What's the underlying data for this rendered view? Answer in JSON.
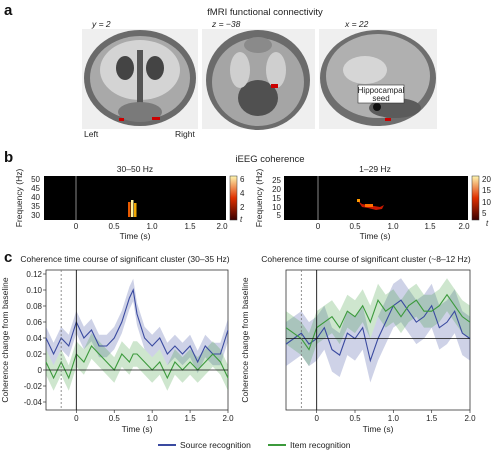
{
  "panels": {
    "a": {
      "label": "a",
      "title": "fMRI functional connectivity",
      "views": [
        {
          "coord": "y = 2",
          "orientation": "coronal"
        },
        {
          "coord": "z = −38",
          "orientation": "axial"
        },
        {
          "coord": "x = 22",
          "orientation": "sagittal"
        }
      ],
      "left_label": "Left",
      "right_label": "Right",
      "seed_label_line1": "Hippocampal",
      "seed_label_line2": "seed"
    },
    "b": {
      "label": "b",
      "title": "iEEG coherence",
      "colors": {
        "low": "#3a0000",
        "mid": "#e03000",
        "high": "#fff7b0"
      },
      "spectrograms": [
        {
          "title": "30–50 Hz",
          "ylabel": "Frequency (Hz)",
          "xlabel": "Time (s)",
          "yticks": [
            "50",
            "45",
            "40",
            "35",
            "30"
          ],
          "xticks": [
            "0",
            "0.5",
            "1.0",
            "1.5",
            "2.0"
          ],
          "cbar_ticks": [
            "6",
            "4",
            "2"
          ],
          "cbar_label": "t"
        },
        {
          "title": "1–29 Hz",
          "ylabel": "Frequency (Hz)",
          "xlabel": "Time (s)",
          "yticks": [
            "25",
            "20",
            "15",
            "10",
            "5"
          ],
          "xticks": [
            "0",
            "0.5",
            "1.0",
            "1.5",
            "2.0"
          ],
          "cbar_ticks": [
            "20",
            "15",
            "10",
            "5"
          ],
          "cbar_label": "t"
        }
      ]
    },
    "c": {
      "label": "c",
      "legend": [
        {
          "label": "Source recognition",
          "color": "#3a4aa0"
        },
        {
          "label": "Item recognition",
          "color": "#3c9a3c"
        }
      ]
    }
  },
  "chart_data": [
    {
      "type": "line",
      "title": "Coherence time course of significant cluster (30–35 Hz)",
      "xlabel": "Time (s)",
      "ylabel": "Coherence change from baseline",
      "xlim": [
        -0.4,
        2.0
      ],
      "ylim": [
        -0.05,
        0.125
      ],
      "xticks": [
        "0",
        "0.5",
        "1.0",
        "1.5",
        "2.0"
      ],
      "yticks": [
        "0.12",
        "0.10",
        "0.08",
        "0.06",
        "0.04",
        "0.02",
        "0",
        "-0.02",
        "-0.04"
      ],
      "ytick_values": [
        0.12,
        0.1,
        0.08,
        0.06,
        0.04,
        0.02,
        0,
        -0.02,
        -0.04
      ],
      "xtick_values": [
        0,
        0.5,
        1.0,
        1.5,
        2.0
      ],
      "vline_dashed": -0.2,
      "vline_solid": 0,
      "x": [
        -0.4,
        -0.3,
        -0.2,
        -0.1,
        0.0,
        0.1,
        0.2,
        0.3,
        0.4,
        0.5,
        0.6,
        0.7,
        0.75,
        0.8,
        0.9,
        1.0,
        1.1,
        1.2,
        1.3,
        1.4,
        1.5,
        1.6,
        1.7,
        1.8,
        1.9,
        2.0
      ],
      "series": [
        {
          "name": "Source recognition",
          "color": "#3a4aa0",
          "values": [
            0.04,
            0.02,
            0.04,
            0.03,
            0.06,
            0.04,
            0.05,
            0.03,
            0.03,
            0.04,
            0.06,
            0.09,
            0.1,
            0.07,
            0.04,
            0.03,
            0.04,
            0.02,
            0.03,
            0.02,
            0.03,
            0.01,
            0.03,
            0.02,
            0.02,
            0.05
          ],
          "band": 0.014
        },
        {
          "name": "Item recognition",
          "color": "#3c9a3c",
          "values": [
            0.01,
            -0.01,
            0.01,
            -0.01,
            0.02,
            0.01,
            0.03,
            0.02,
            0.01,
            0.0,
            0.02,
            0.01,
            0.02,
            0.02,
            0.01,
            0.0,
            0.01,
            -0.01,
            0.01,
            0.0,
            0.01,
            0.0,
            0.01,
            0.02,
            0.01,
            -0.01
          ],
          "band": 0.016
        }
      ]
    },
    {
      "type": "line",
      "title": "Coherence time course of significant cluster (~8–12 Hz)",
      "xlabel": "Time (s)",
      "ylabel": "Coherence change from baseline",
      "xlim": [
        -0.4,
        2.0
      ],
      "ylim": [
        -0.13,
        0.125
      ],
      "xticks": [
        "0",
        "0.5",
        "1.0",
        "1.5",
        "2.0"
      ],
      "xtick_values": [
        0,
        0.5,
        1.0,
        1.5,
        2.0
      ],
      "yticks": [],
      "ytick_values": [],
      "vline_dashed": -0.2,
      "vline_solid": 0,
      "x": [
        -0.4,
        -0.3,
        -0.2,
        -0.1,
        0.0,
        0.1,
        0.2,
        0.3,
        0.4,
        0.5,
        0.6,
        0.7,
        0.8,
        0.9,
        1.0,
        1.1,
        1.2,
        1.3,
        1.4,
        1.5,
        1.6,
        1.7,
        1.8,
        1.9,
        2.0
      ],
      "series": [
        {
          "name": "Source recognition",
          "color": "#3a4aa0",
          "values": [
            -0.01,
            0.0,
            0.01,
            -0.01,
            0.0,
            0.02,
            -0.02,
            -0.03,
            0.01,
            0.0,
            0.02,
            -0.04,
            0.0,
            0.03,
            0.06,
            0.07,
            0.05,
            0.03,
            0.04,
            0.06,
            0.02,
            0.03,
            0.05,
            0.01,
            0.0
          ],
          "band": 0.04
        },
        {
          "name": "Item recognition",
          "color": "#3c9a3c",
          "values": [
            0.02,
            0.01,
            0.0,
            -0.02,
            0.02,
            0.03,
            0.04,
            0.02,
            0.05,
            0.04,
            0.06,
            0.03,
            0.07,
            0.05,
            0.06,
            0.04,
            0.06,
            0.07,
            0.05,
            0.05,
            0.06,
            0.08,
            0.06,
            0.04,
            0.03
          ],
          "band": 0.03
        }
      ]
    }
  ]
}
